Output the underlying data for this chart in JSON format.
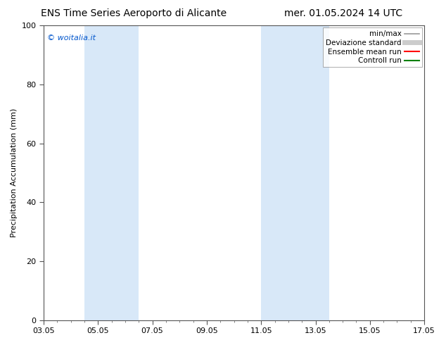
{
  "title_left": "ENS Time Series Aeroporto di Alicante",
  "title_right": "mer. 01.05.2024 14 UTC",
  "ylabel": "Precipitation Accumulation (mm)",
  "watermark": "© woitalia.it",
  "watermark_color": "#0055cc",
  "xticks": [
    "03.05",
    "05.05",
    "07.05",
    "09.05",
    "11.05",
    "13.05",
    "15.05",
    "17.05"
  ],
  "xtick_values": [
    0,
    2,
    4,
    6,
    8,
    10,
    12,
    14
  ],
  "ylim": [
    0,
    100
  ],
  "yticks": [
    0,
    20,
    40,
    60,
    80,
    100
  ],
  "shaded_regions": [
    {
      "x_start": 1.5,
      "x_end": 3.5,
      "color": "#d8e8f8"
    },
    {
      "x_start": 8.0,
      "x_end": 10.5,
      "color": "#d8e8f8"
    }
  ],
  "legend_items": [
    {
      "label": "min/max",
      "color": "#999999",
      "lw": 1.2,
      "ls": "-"
    },
    {
      "label": "Deviazione standard",
      "color": "#cccccc",
      "lw": 5,
      "ls": "-"
    },
    {
      "label": "Ensemble mean run",
      "color": "#ff0000",
      "lw": 1.5,
      "ls": "-"
    },
    {
      "label": "Controll run",
      "color": "#008000",
      "lw": 1.5,
      "ls": "-"
    }
  ],
  "bg_color": "#ffffff",
  "font_size": 8,
  "title_font_size": 10,
  "minor_xtick_interval": 0.5
}
